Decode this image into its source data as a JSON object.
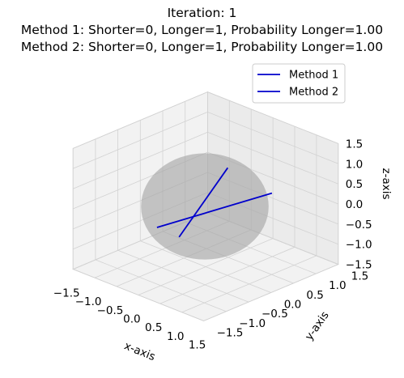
{
  "chart_data": {
    "type": "line3d",
    "title_lines": [
      "Iteration: 1",
      "Method 1: Shorter=0, Longer=1, Probability Longer=1.00",
      "Method 2: Shorter=0, Longer=1, Probability Longer=1.00"
    ],
    "xlabel": "x-axis",
    "ylabel": "y-axis",
    "zlabel": "z-axis",
    "xlim": [
      -1.5,
      1.5
    ],
    "ylim": [
      -1.5,
      1.5
    ],
    "zlim": [
      -1.5,
      1.5
    ],
    "xticks": [
      "−1.5",
      "−1.0",
      "−0.5",
      "0.0",
      "0.5",
      "1.0",
      "1.5"
    ],
    "yticks": [
      "−1.5",
      "−1.0",
      "−0.5",
      "0.0",
      "0.5",
      "1.0",
      "1.5"
    ],
    "zticks": [
      "−1.5",
      "−1.0",
      "−0.5",
      "0.0",
      "0.5",
      "1.0",
      "1.5"
    ],
    "grid": true,
    "legend_position": "upper-right",
    "sphere": {
      "radius": 1,
      "color": "#a8a8a8",
      "opacity": 0.65
    },
    "series": [
      {
        "name": "Method 1",
        "color": "#0000cc",
        "points": [
          [
            -0.55,
            -0.55,
            -0.5
          ],
          [
            0.75,
            0.75,
            0.3
          ]
        ]
      },
      {
        "name": "Method 2",
        "color": "#0000cc",
        "points": [
          [
            -0.3,
            -0.3,
            -0.75
          ],
          [
            0.25,
            0.25,
            0.95
          ]
        ]
      }
    ]
  }
}
